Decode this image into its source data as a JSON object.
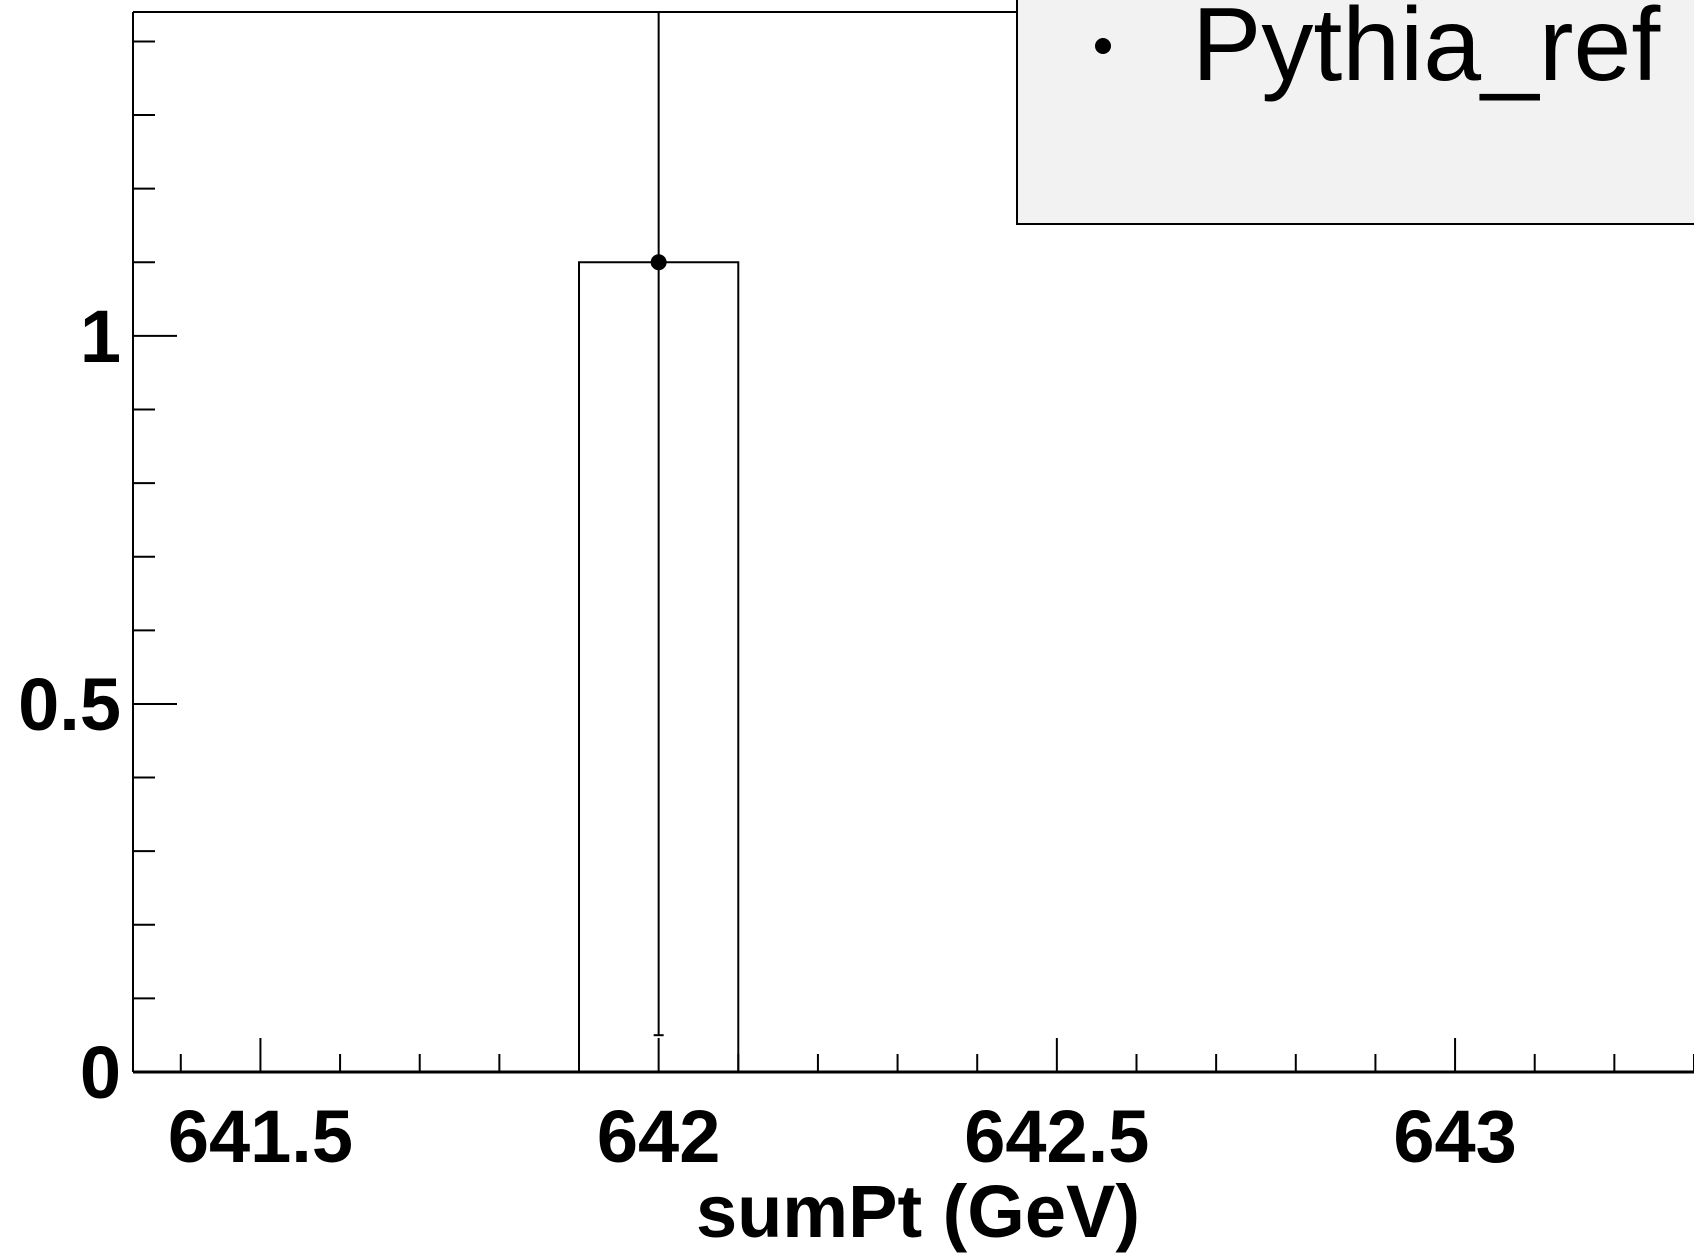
{
  "chart_data": {
    "type": "bar",
    "title": "",
    "xlabel": "sumPt (GeV)",
    "ylabel": "",
    "xlim": [
      641.34,
      643.3
    ],
    "ylim": [
      0,
      1.44
    ],
    "x_ticks": [
      641.5,
      642,
      642.5,
      643
    ],
    "x_tick_labels": [
      "641.5",
      "642",
      "642.5",
      "643"
    ],
    "y_ticks": [
      0,
      0.5,
      1
    ],
    "y_tick_labels": [
      "0",
      "0.5",
      "1"
    ],
    "grid": false,
    "legend": {
      "placement": "top-right",
      "entries": [
        "Pythia_ref"
      ]
    },
    "series": [
      {
        "name": "Pythia_ref",
        "bins": [
          {
            "low": 641.9,
            "high": 642.1,
            "value": 1.1
          }
        ],
        "points": [
          {
            "x": 642.0,
            "y": 1.1,
            "err_low": 1.05,
            "err_high": 1.44
          }
        ]
      }
    ],
    "colors": {
      "line": "#000000",
      "legend_bg": "#f2f2f2",
      "background": "#ffffff"
    }
  }
}
